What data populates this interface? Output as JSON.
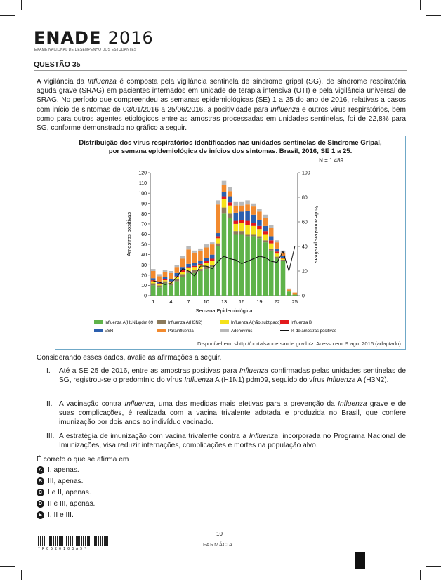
{
  "header": {
    "brand": "ENADE",
    "year": "2016",
    "subtitle": "EXAME NACIONAL DE DESEMPENHO DOS ESTUDANTES"
  },
  "question": {
    "title": "QUESTÃO 35",
    "intro_parts": [
      "A vigilância da ",
      "Influenza",
      " é composta pela vigilância sentinela de síndrome gripal (SG), de síndrome respiratória aguda grave (SRAG) em pacientes internados em unidade de terapia intensiva (UTI) e pela vigilância universal de SRAG. No período que compreendeu as semanas epidemiológicas (SE) 1 a 25 do ano de 2016, relativas a casos com início de sintomas de 03/01/2016 a 25/06/2016, a positividade para ",
      "Influenza",
      " e outros vírus respiratórios, bem como para outros agentes etiológicos entre as amostras processadas em unidades sentinelas, foi de 22,8% para SG, conforme demonstrado no gráfico a seguir."
    ],
    "consider": "Considerando esses dados, avalie as afirmações a seguir.",
    "items": [
      {
        "num": "I.",
        "a": "Até a SE 25 de 2016, entre as amostras positivas para ",
        "b": "Influenza",
        "c": " confirmadas pelas unidades sentinelas de SG, registrou-se o predomínio do vírus ",
        "d": "Influenza",
        "e": " A (H1N1) pdm09, seguido do vírus ",
        "f": "Influenza",
        "g": " A (H3N2)."
      },
      {
        "num": "II.",
        "a": "A vacinação contra ",
        "b": "Influenza",
        "c": ", uma das medidas mais efetivas para a prevenção da ",
        "d": "Influenza",
        "e": " grave e de suas complicações, é realizada com a vacina trivalente adotada e produzida no Brasil, que confere imunização por dois anos ao indivíduo vacinado.",
        "f": "",
        "g": ""
      },
      {
        "num": "III.",
        "a": "A estratégia de imunização com vacina trivalente contra a ",
        "b": "Influenza",
        "c": ", incorporada no Programa Nacional de Imunizações, visa reduzir internações, complicações e mortes na população alvo.",
        "d": "",
        "e": "",
        "f": "",
        "g": ""
      }
    ],
    "stem": "É correto o que se afirma em",
    "options": [
      {
        "letter": "A",
        "text": "I, apenas."
      },
      {
        "letter": "B",
        "text": "III, apenas."
      },
      {
        "letter": "C",
        "text": "I e II, apenas."
      },
      {
        "letter": "D",
        "text": "II e III, apenas."
      },
      {
        "letter": "E",
        "text": "I, II e III."
      }
    ]
  },
  "chart_data": {
    "type": "bar",
    "title_line1": "Distribuição dos vírus respiratórios identificados nas unidades sentinelas de Síndrome Gripal,",
    "title_line2": "por semana epidemiológica de inícios dos sintomas. Brasil, 2016, SE 1 a 25.",
    "n_label": "N = 1 489",
    "xlabel": "Semana Epidemiológica",
    "ylabel": "Amostras positivas",
    "y2label": "% de amostras positivas",
    "ylim": [
      0,
      120
    ],
    "y_ticks": [
      0,
      10,
      20,
      30,
      40,
      50,
      60,
      70,
      80,
      90,
      100,
      110,
      120
    ],
    "y2lim": [
      0,
      100
    ],
    "y2_ticks": [
      0,
      20,
      40,
      60,
      80,
      100
    ],
    "x_ticks": [
      "1",
      "4",
      "7",
      "10",
      "13",
      "16",
      "19",
      "22",
      "25"
    ],
    "categories": [
      "1",
      "2",
      "3",
      "4",
      "5",
      "6",
      "7",
      "8",
      "9",
      "10",
      "11",
      "12",
      "13",
      "14",
      "15",
      "16",
      "17",
      "18",
      "19",
      "20",
      "21",
      "22",
      "23",
      "24",
      "25"
    ],
    "series": [
      {
        "name": "Influenza A(H1N1)pdm 09",
        "color": "#5fb34a",
        "values": [
          10,
          8,
          12,
          10,
          14,
          18,
          22,
          22,
          24,
          26,
          28,
          48,
          80,
          76,
          60,
          60,
          58,
          58,
          56,
          52,
          44,
          36,
          34,
          4,
          1
        ]
      },
      {
        "name": "Influenza A(H3N2)",
        "color": "#8c7a5b",
        "values": [
          2,
          2,
          2,
          2,
          2,
          3,
          2,
          3,
          2,
          3,
          2,
          3,
          6,
          4,
          3,
          3,
          2,
          2,
          2,
          2,
          2,
          2,
          1,
          0,
          0
        ]
      },
      {
        "name": "Influenza A(não subtipado)",
        "color": "#f5e21a",
        "values": [
          2,
          1,
          1,
          1,
          2,
          2,
          3,
          3,
          4,
          3,
          4,
          5,
          8,
          8,
          7,
          8,
          9,
          8,
          7,
          6,
          5,
          3,
          1,
          0,
          0
        ]
      },
      {
        "name": "Influenza B",
        "color": "#e31a1c",
        "values": [
          1,
          1,
          1,
          1,
          1,
          2,
          1,
          1,
          1,
          2,
          2,
          2,
          3,
          3,
          3,
          3,
          4,
          3,
          3,
          3,
          3,
          2,
          1,
          0,
          0
        ]
      },
      {
        "name": "VSR",
        "color": "#2b5fae",
        "values": [
          2,
          1,
          2,
          2,
          3,
          3,
          3,
          3,
          3,
          3,
          4,
          3,
          4,
          6,
          8,
          8,
          10,
          8,
          6,
          5,
          4,
          3,
          2,
          0,
          0
        ]
      },
      {
        "name": "Parainfluenza",
        "color": "#f28a2e",
        "values": [
          7,
          6,
          5,
          6,
          6,
          8,
          14,
          10,
          10,
          10,
          10,
          28,
          7,
          5,
          7,
          6,
          6,
          8,
          8,
          8,
          8,
          6,
          3,
          2,
          2
        ]
      },
      {
        "name": "Adenovírus",
        "color": "#b9b9b9",
        "values": [
          2,
          2,
          2,
          2,
          2,
          3,
          3,
          2,
          2,
          3,
          2,
          4,
          4,
          4,
          4,
          4,
          4,
          3,
          3,
          3,
          3,
          2,
          2,
          1,
          0
        ]
      }
    ],
    "line_series": {
      "name": "% de amostras positivas",
      "color": "#111111",
      "values": [
        12,
        11,
        9,
        10,
        15,
        22,
        20,
        16,
        24,
        24,
        22,
        28,
        32,
        30,
        29,
        26,
        28,
        30,
        32,
        31,
        28,
        27,
        36,
        20,
        40
      ]
    },
    "legend": [
      "Influenza A(H1N1)pdm 09",
      "Influenza A(H3N2)",
      "Influenza A(não subtipado)",
      "Influenza B",
      "VSR",
      "Parainfluenza",
      "Adenovírus",
      "% de amostras positivas"
    ],
    "legend_position": "bottom"
  },
  "source": "Disponível em: <http://portalsaude.saude.gov.br>. Acesso em: 9 ago. 2016 (adaptado).",
  "footer": {
    "page": "10",
    "course": "FARMÁCIA",
    "barcode_digits": "*R0520103A5*"
  }
}
